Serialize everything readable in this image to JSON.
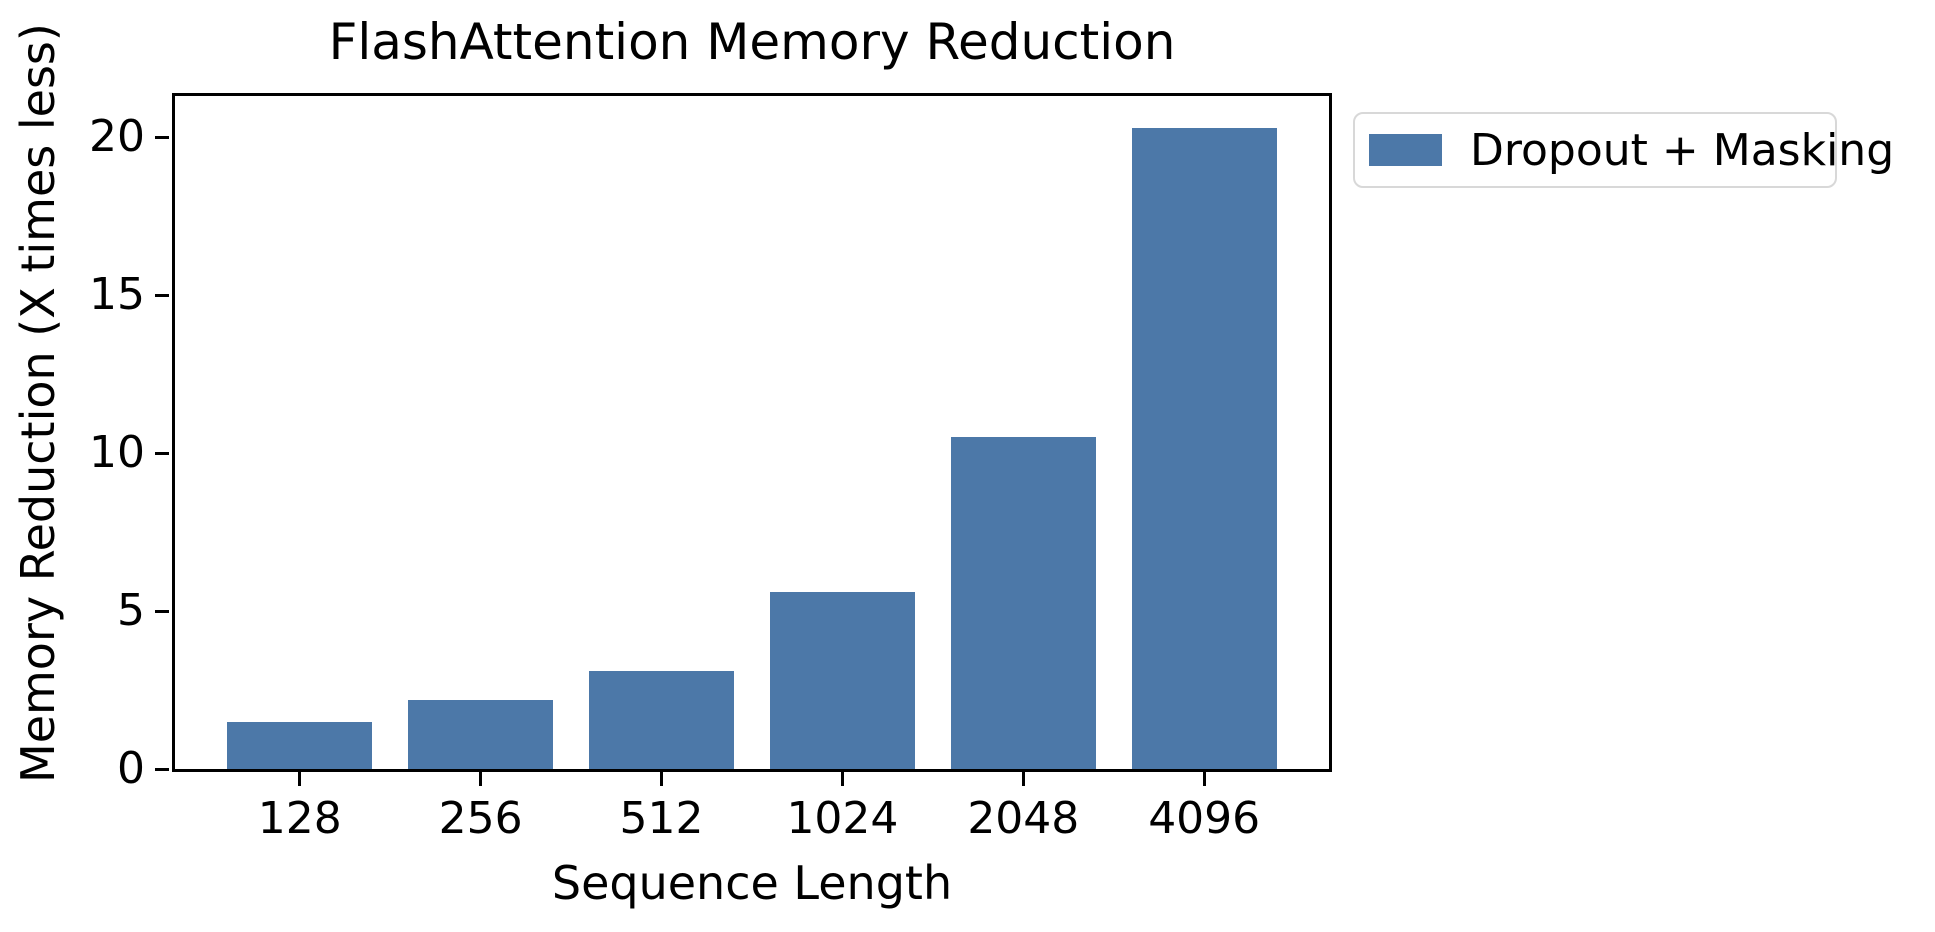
{
  "chart_data": {
    "type": "bar",
    "title": "FlashAttention Memory Reduction",
    "xlabel": "Sequence Length",
    "ylabel": "Memory Reduction (X times less)",
    "categories": [
      "128",
      "256",
      "512",
      "1024",
      "2048",
      "4096"
    ],
    "series": [
      {
        "name": "Dropout + Masking",
        "values": [
          1.5,
          2.2,
          3.1,
          5.6,
          10.5,
          20.3
        ],
        "color": "#4C78A8"
      }
    ],
    "ylim": [
      0,
      21.3
    ],
    "yticks": [
      0,
      5,
      10,
      15,
      20
    ],
    "bar_width_ratio": 0.8,
    "grid": false,
    "legend_position": "outside-upper-right"
  },
  "colors": {
    "bar": "#4C78A8",
    "axis": "#000000",
    "legend_border": "#d8d8d8",
    "background": "#ffffff"
  }
}
